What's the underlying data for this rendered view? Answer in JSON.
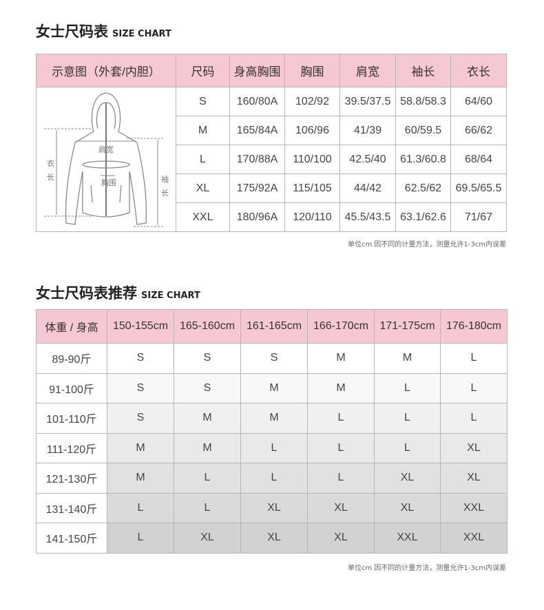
{
  "size_chart": {
    "title": "女士尺码表",
    "title_en": "SIZE CHART",
    "headers": [
      "示意图（外套/内胆）",
      "尺码",
      "身高胸围",
      "胸围",
      "肩宽",
      "袖长",
      "衣长"
    ],
    "diagram_labels": {
      "shoulder": "肩宽",
      "chest": "胸围",
      "length": "衣长",
      "sleeve": "袖长"
    },
    "rows": [
      [
        "S",
        "160/80A",
        "102/92",
        "39.5/37.5",
        "58.8/58.3",
        "64/60"
      ],
      [
        "M",
        "165/84A",
        "106/96",
        "41/39",
        "60/59.5",
        "66/62"
      ],
      [
        "L",
        "170/88A",
        "110/100",
        "42.5/40",
        "61.3/60.8",
        "68/64"
      ],
      [
        "XL",
        "175/92A",
        "115/105",
        "44/42",
        "62.5/62",
        "69.5/65.5"
      ],
      [
        "XXL",
        "180/96A",
        "120/110",
        "45.5/43.5",
        "63.1/62.6",
        "71/67"
      ]
    ],
    "note": "单位cm 因不同的计量方法，测量允许1-3cm内误差"
  },
  "recommend": {
    "title": "女士尺码表推荐",
    "title_en": "SIZE CHART",
    "headers": [
      "体重 / 身高",
      "150-155cm",
      "165-160cm",
      "161-165cm",
      "166-170cm",
      "171-175cm",
      "176-180cm"
    ],
    "rows": [
      [
        "89-90斤",
        "S",
        "S",
        "S",
        "M",
        "M",
        "L"
      ],
      [
        "91-100斤",
        "S",
        "S",
        "M",
        "M",
        "L",
        "L"
      ],
      [
        "101-110斤",
        "S",
        "M",
        "M",
        "L",
        "L",
        "L"
      ],
      [
        "111-120斤",
        "M",
        "M",
        "L",
        "L",
        "L",
        "XL"
      ],
      [
        "121-130斤",
        "M",
        "L",
        "L",
        "L",
        "XL",
        "XL"
      ],
      [
        "131-140斤",
        "L",
        "L",
        "XL",
        "XL",
        "XL",
        "XXL"
      ],
      [
        "141-150斤",
        "L",
        "XL",
        "XL",
        "XL",
        "XXL",
        "XXL"
      ]
    ],
    "note": "单位cm 因不同的计量方法，测量允许1-3cm内误差"
  },
  "colors": {
    "header_pink": "#f6c8d4",
    "border": "#b5b5b5"
  }
}
